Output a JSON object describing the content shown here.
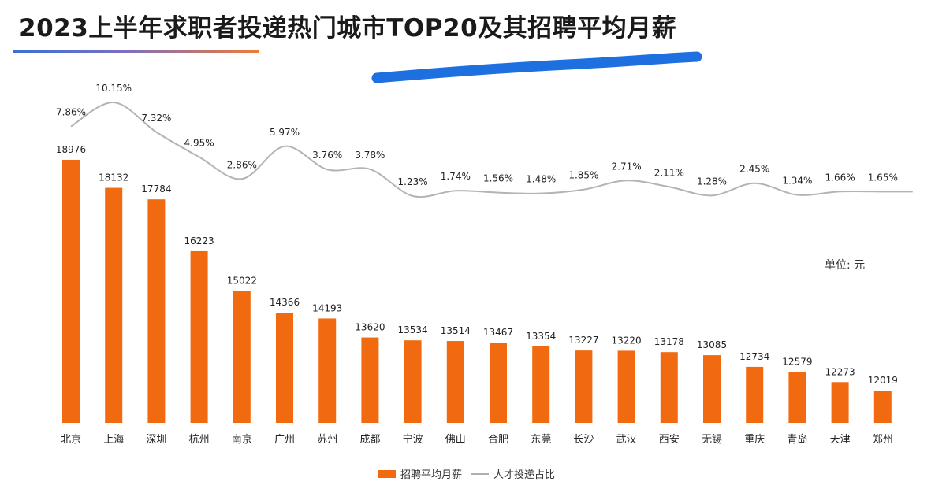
{
  "title": "2023上半年求职者投递热门城市TOP20及其招聘平均月薪",
  "unit_label": "单位: 元",
  "colors": {
    "bar": "#f26a10",
    "line": "#b3b3b3",
    "title_underline_start": "#3a6fd8",
    "title_underline_end": "#f07a3a",
    "annotation_stroke": "#1e6fe0"
  },
  "chart_data": {
    "type": "bar",
    "categories": [
      "北京",
      "上海",
      "深圳",
      "杭州",
      "南京",
      "广州",
      "苏州",
      "成都",
      "宁波",
      "佛山",
      "合肥",
      "东莞",
      "长沙",
      "武汉",
      "西安",
      "无锡",
      "重庆",
      "青岛",
      "天津",
      "郑州"
    ],
    "series": [
      {
        "name": "招聘平均月薪",
        "type": "bar",
        "values": [
          18976,
          18132,
          17784,
          16223,
          15022,
          14366,
          14193,
          13620,
          13534,
          13514,
          13467,
          13354,
          13227,
          13220,
          13178,
          13085,
          12734,
          12579,
          12273,
          12019
        ]
      },
      {
        "name": "人才投递占比",
        "type": "line",
        "values": [
          7.86,
          10.15,
          7.32,
          4.95,
          2.86,
          5.97,
          3.76,
          3.78,
          1.23,
          1.74,
          1.56,
          1.48,
          1.85,
          2.71,
          2.11,
          1.28,
          2.45,
          1.34,
          1.66,
          1.65
        ],
        "labels": [
          "7.86%",
          "10.15%",
          "7.32%",
          "4.95%",
          "2.86%",
          "5.97%",
          "3.76%",
          "3.78%",
          "1.23%",
          "1.74%",
          "1.56%",
          "1.48%",
          "1.85%",
          "2.71%",
          "2.11%",
          "1.28%",
          "2.45%",
          "1.34%",
          "1.66%",
          "1.65%"
        ]
      }
    ],
    "legend": [
      "招聘平均月薪",
      "人才投递占比"
    ],
    "legend_position": "bottom",
    "grid": false
  }
}
